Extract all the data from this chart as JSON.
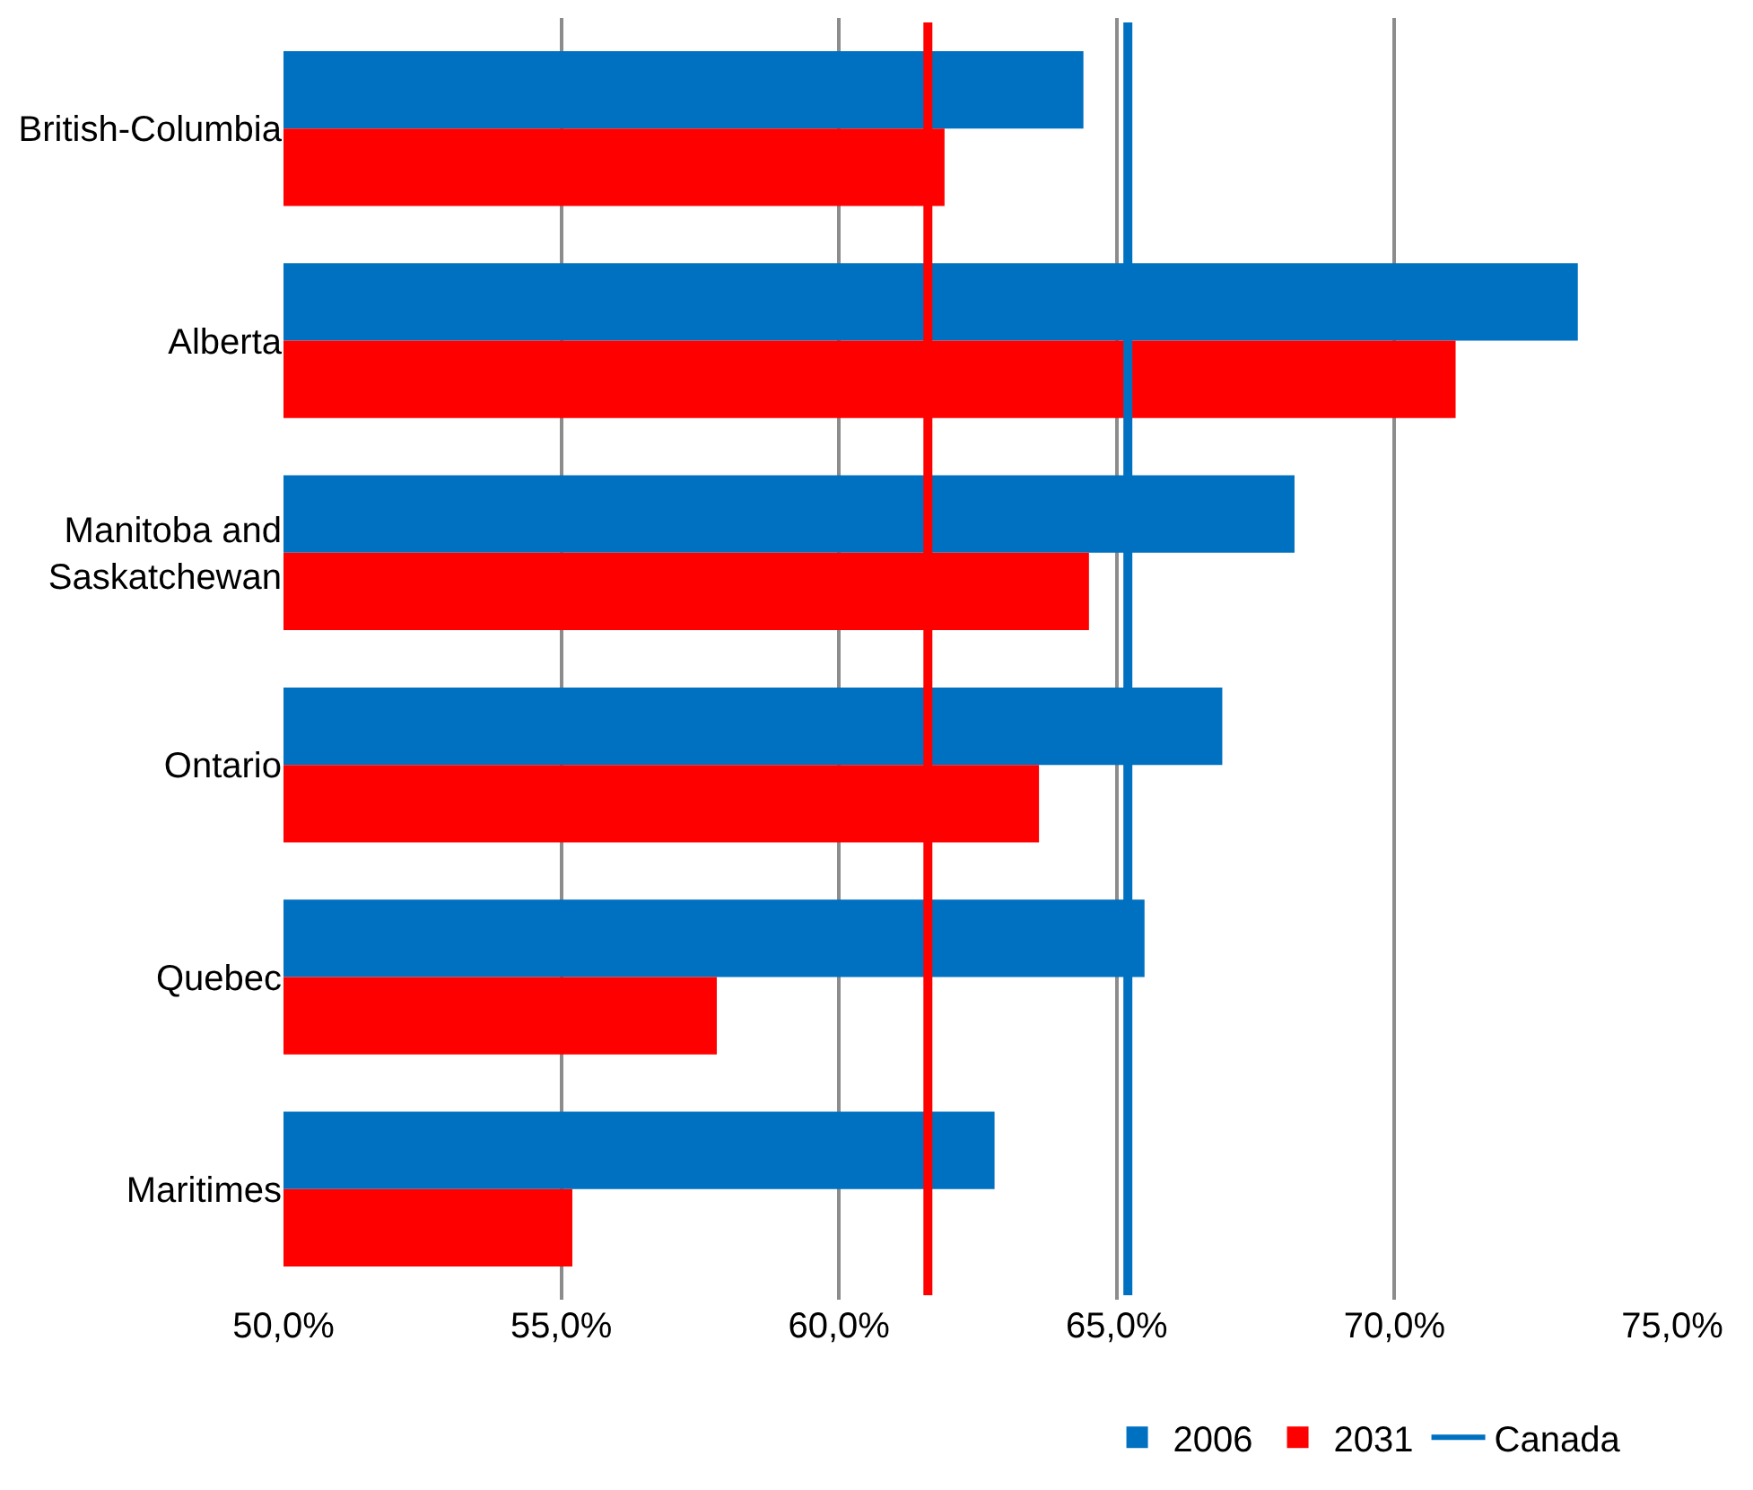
{
  "chart_data": {
    "type": "bar",
    "orientation": "horizontal",
    "categories": [
      "British-Columbia",
      "Alberta",
      "Manitoba and\nSaskatchewan",
      "Ontario",
      "Quebec",
      "Maritimes"
    ],
    "series": [
      {
        "name": "2006",
        "color": "#0070c0",
        "values": [
          64.4,
          73.3,
          68.2,
          66.9,
          65.5,
          62.8
        ]
      },
      {
        "name": "2031",
        "color": "#ff0000",
        "values": [
          61.9,
          71.1,
          64.5,
          63.6,
          57.8,
          55.2
        ]
      }
    ],
    "ref_lines": [
      {
        "axis": "x",
        "value": 65.2,
        "color": "#0070c0",
        "label": "Canada"
      },
      {
        "axis": "x",
        "value": 61.6,
        "color": "#ff0000"
      }
    ],
    "xlim": [
      50,
      75
    ],
    "xticks": [
      {
        "value": 50,
        "label": "50,0%"
      },
      {
        "value": 55,
        "label": "55,0%"
      },
      {
        "value": 60,
        "label": "60,0%"
      },
      {
        "value": 65,
        "label": "65,0%"
      },
      {
        "value": 70,
        "label": "70,0%"
      },
      {
        "value": 75,
        "label": "75,0%"
      }
    ],
    "grid": "x",
    "legend": "bottom"
  }
}
